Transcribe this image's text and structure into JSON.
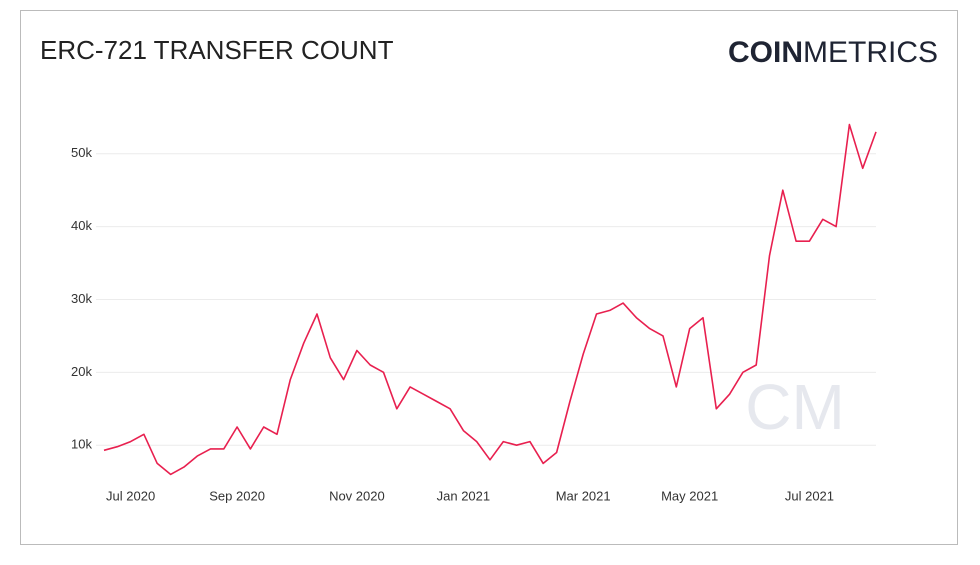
{
  "chart_data": {
    "type": "line",
    "title": "ERC-721 TRANSFER COUNT",
    "logo": {
      "bold": "COIN",
      "light": "METRICS"
    },
    "watermark": "CM",
    "categories": [
      null,
      null,
      "Jul 2020",
      null,
      null,
      null,
      null,
      null,
      null,
      null,
      "Sep 2020",
      null,
      null,
      null,
      null,
      null,
      null,
      null,
      null,
      "Nov 2020",
      null,
      null,
      null,
      null,
      null,
      null,
      null,
      "Jan 2021",
      null,
      null,
      null,
      null,
      null,
      null,
      null,
      null,
      "Mar 2021",
      null,
      null,
      null,
      null,
      null,
      null,
      null,
      "May 2021",
      null,
      null,
      null,
      null,
      null,
      null,
      null,
      null,
      "Jul 2021",
      null,
      null,
      null,
      null,
      null
    ],
    "series": [
      {
        "name": "Transfer Count",
        "color": "#e8204f",
        "values": [
          9300,
          9800,
          10500,
          11500,
          7500,
          6000,
          7000,
          8500,
          9500,
          9500,
          12500,
          9500,
          12500,
          11500,
          19000,
          24000,
          28000,
          22000,
          19000,
          23000,
          21000,
          20000,
          15000,
          18000,
          17000,
          16000,
          15000,
          12000,
          10500,
          8000,
          10500,
          10000,
          10500,
          7500,
          9000,
          16000,
          22500,
          28000,
          28500,
          29500,
          27500,
          26000,
          25000,
          18000,
          26000,
          27500,
          15000,
          17000,
          20000,
          21000,
          36000,
          45000,
          38000,
          38000,
          41000,
          40000,
          54000,
          48000,
          53000
        ]
      }
    ],
    "ylim": [
      5500,
      56000
    ],
    "yticks": [
      {
        "value": 10000,
        "label": "10k"
      },
      {
        "value": 20000,
        "label": "20k"
      },
      {
        "value": 30000,
        "label": "30k"
      },
      {
        "value": 40000,
        "label": "40k"
      },
      {
        "value": 50000,
        "label": "50k"
      }
    ],
    "grid": true
  }
}
